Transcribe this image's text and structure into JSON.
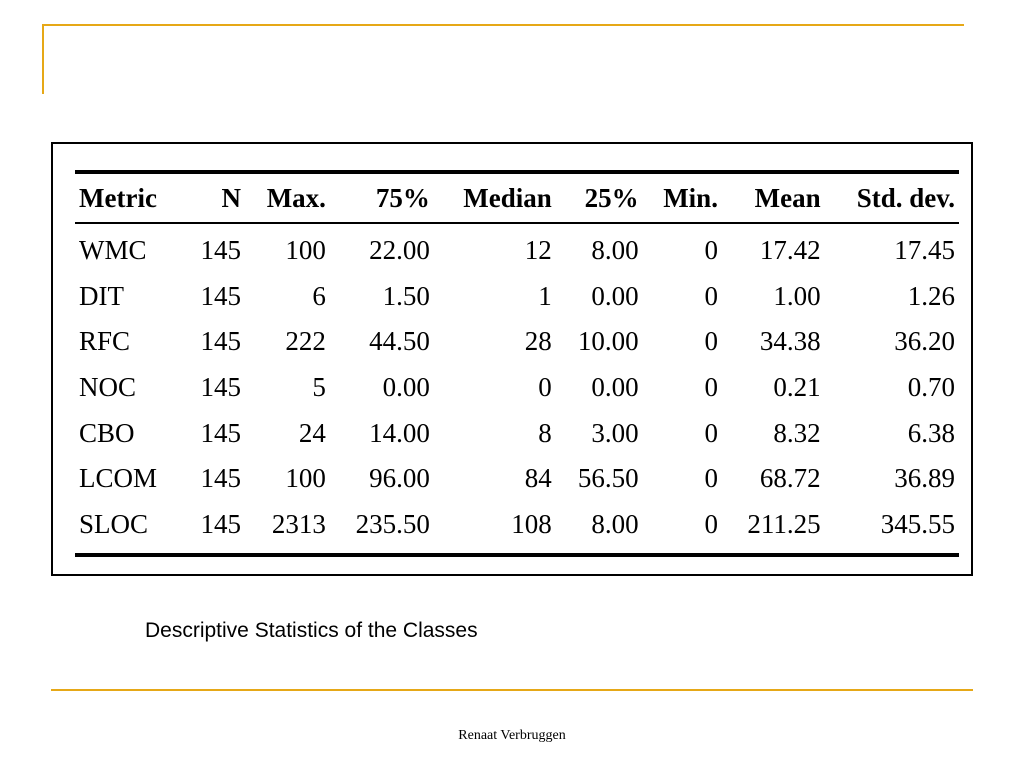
{
  "table": {
    "columns": [
      "Metric",
      "N",
      "Max.",
      "75%",
      "Median",
      "25%",
      "Min.",
      "Mean",
      "Std. dev."
    ],
    "rows": [
      [
        "WMC",
        "145",
        "100",
        "22.00",
        "12",
        "8.00",
        "0",
        "17.42",
        "17.45"
      ],
      [
        "DIT",
        "145",
        "6",
        "1.50",
        "1",
        "0.00",
        "0",
        "1.00",
        "1.26"
      ],
      [
        "RFC",
        "145",
        "222",
        "44.50",
        "28",
        "10.00",
        "0",
        "34.38",
        "36.20"
      ],
      [
        "NOC",
        "145",
        "5",
        "0.00",
        "0",
        "0.00",
        "0",
        "0.21",
        "0.70"
      ],
      [
        "CBO",
        "145",
        "24",
        "14.00",
        "8",
        "3.00",
        "0",
        "8.32",
        "6.38"
      ],
      [
        "LCOM",
        "145",
        "100",
        "96.00",
        "84",
        "56.50",
        "0",
        "68.72",
        "36.89"
      ],
      [
        "SLOC",
        "145",
        "2313",
        "235.50",
        "108",
        "8.00",
        "0",
        "211.25",
        "345.55"
      ]
    ]
  },
  "caption": "Descriptive Statistics of the Classes",
  "footer": "Renaat Verbruggen",
  "colors": {
    "accent": "#e6a817",
    "text": "#000000",
    "background": "#ffffff"
  }
}
